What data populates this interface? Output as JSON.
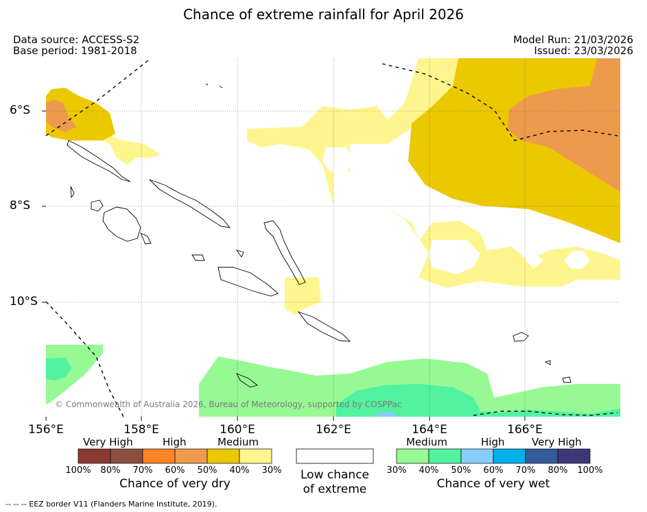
{
  "title": "Chance of extreme rainfall for April 2026",
  "meta": {
    "data_source": "Data source: ACCESS-S2",
    "base_period": "Base period: 1981-2018",
    "model_run": "Model Run: 21/03/2026",
    "issued": "Issued: 23/03/2026"
  },
  "axes": {
    "lon_ticks": [
      "156°E",
      "158°E",
      "160°E",
      "162°E",
      "164°E",
      "166°E"
    ],
    "lat_ticks": [
      "6°S",
      "8°S",
      "10°S"
    ],
    "lon_range": [
      156,
      168
    ],
    "lat_range": [
      -5,
      -12.5
    ]
  },
  "copyright": "© Commonwealth of Australia 2026, Bureau of Meteorology, supported by COSPPac",
  "legend": {
    "dry": {
      "categories": [
        "Very High",
        "High",
        "Medium"
      ],
      "colors": [
        "#8b3a32",
        "#8c4f3f",
        "#ff8529",
        "#ed9a4d",
        "#ecc800",
        "#fff58e"
      ],
      "labels": [
        "100%",
        "80%",
        "70%",
        "60%",
        "50%",
        "40%",
        "30%"
      ],
      "title": "Chance of very dry"
    },
    "neutral": {
      "title_line1": "Low chance",
      "title_line2": "of extreme"
    },
    "wet": {
      "categories": [
        "Medium",
        "High",
        "Very High"
      ],
      "colors": [
        "#97f993",
        "#52f2a0",
        "#86cdfb",
        "#00b1ec",
        "#345c9d",
        "#3c3878"
      ],
      "labels": [
        "30%",
        "40%",
        "50%",
        "60%",
        "70%",
        "80%",
        "100%"
      ],
      "title": "Chance of very wet"
    }
  },
  "eez_note": "-- -- -- EEZ border V11 (Flanders Marine Institute, 2019).",
  "map_colors": {
    "dry_medium_low": "#fff58e",
    "dry_medium": "#ecc800",
    "dry_high": "#ed9a4d",
    "wet_medium_low": "#97f993",
    "wet_medium": "#52f2a0",
    "wet_high": "#86cdfb"
  }
}
